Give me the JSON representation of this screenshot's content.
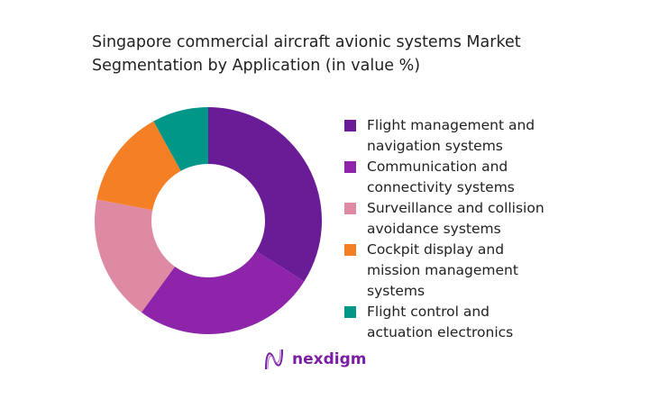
{
  "chart_data": {
    "type": "pie",
    "donut": true,
    "title": "Singapore commercial aircraft avionic systems Market Segmentation by Application (in value %)",
    "categories": [
      "Flight management and navigation systems",
      "Communication and connectivity systems",
      "Surveillance and collision avoidance systems",
      "Cockpit display and mission management systems",
      "Flight control and actuation electronics"
    ],
    "values": [
      34,
      26,
      18,
      14,
      8
    ],
    "colors": [
      "#6a1b96",
      "#8e24aa",
      "#de8aa3",
      "#f57f25",
      "#009688"
    ],
    "legend_position": "right"
  },
  "title_lines": [
    "Singapore commercial aircraft avionic systems Market",
    "Segmentation by Application (in value %)"
  ],
  "legend": [
    [
      "Flight management and",
      "navigation systems"
    ],
    [
      "Communication and",
      "connectivity systems"
    ],
    [
      "Surveillance and collision",
      "avoidance systems"
    ],
    [
      "Cockpit display and",
      "mission management",
      "systems"
    ],
    [
      "Flight control and",
      "actuation electronics"
    ]
  ],
  "logo": {
    "text": "nexdigm"
  }
}
